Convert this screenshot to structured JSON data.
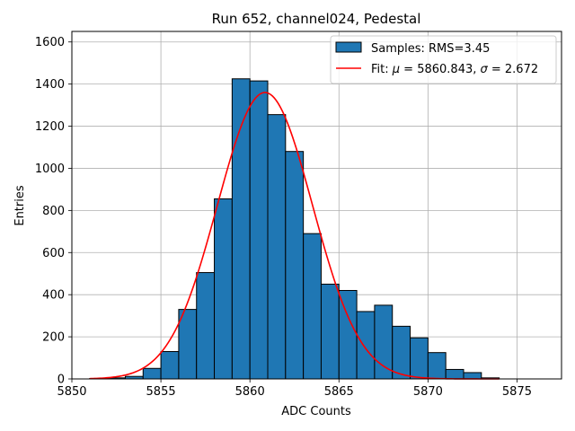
{
  "chart_data": {
    "type": "bar",
    "title": "Run 652, channel024, Pedestal",
    "xlabel": "ADC Counts",
    "ylabel": "Entries",
    "xlim": [
      5850,
      5877.5
    ],
    "ylim": [
      0,
      1650
    ],
    "xticks": [
      5850,
      5855,
      5860,
      5865,
      5870,
      5875
    ],
    "yticks": [
      0,
      200,
      400,
      600,
      800,
      1000,
      1200,
      1400,
      1600
    ],
    "grid": true,
    "legend_position": "top-right",
    "bar_color": "#1f77b4",
    "fit_color": "#ff0000",
    "series": [
      {
        "name": "Samples: RMS=3.45",
        "bin_edges": [
          5851,
          5852,
          5853,
          5854,
          5855,
          5856,
          5857,
          5858,
          5859,
          5860,
          5861,
          5862,
          5863,
          5864,
          5865,
          5866,
          5867,
          5868,
          5869,
          5870,
          5871,
          5872,
          5873,
          5874
        ],
        "values": [
          2,
          5,
          12,
          50,
          130,
          330,
          505,
          855,
          1425,
          1415,
          1255,
          1080,
          690,
          450,
          420,
          320,
          350,
          250,
          195,
          125,
          45,
          30,
          5
        ]
      },
      {
        "name": "Fit: μ = 5860.843, σ = 2.672",
        "mu": 5860.843,
        "sigma": 2.672,
        "amplitude": 1360,
        "x_range": [
          5851,
          5874
        ]
      }
    ],
    "legend": {
      "hist_label": "Samples: RMS=3.45",
      "fit_label_prefix": "Fit: ",
      "fit_mu_symbol": "μ",
      "fit_mu_value": " = 5860.843, ",
      "fit_sigma_symbol": "σ",
      "fit_sigma_value": " = 2.672"
    }
  }
}
